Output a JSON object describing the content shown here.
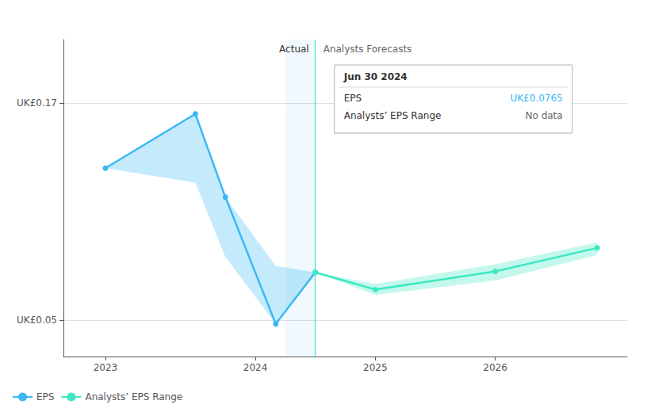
{
  "chart_data": {
    "type": "line",
    "xlim": [
      2022.4,
      2027.1
    ],
    "xticks": [
      {
        "value": 2022.75,
        "label": "2023"
      },
      2024,
      2025,
      2026
    ],
    "ylim": [
      0.03,
      0.205
    ],
    "yticks": [
      {
        "value": 0.05,
        "label": "UK£0.05"
      },
      {
        "value": 0.17,
        "label": "UK£0.17"
      }
    ],
    "grid": true,
    "legend": "lower left",
    "series": [
      {
        "name": "EPS",
        "color": "#3ab8f5",
        "marker": "circle",
        "x": [
          2022.75,
          2023.5,
          2023.75,
          2024.17,
          2024.5
        ],
        "values": [
          0.134,
          0.164,
          0.118,
          0.048,
          0.0765
        ],
        "band_upper": [
          0.134,
          0.164,
          0.118,
          0.08,
          0.0765
        ],
        "band_lower": [
          0.134,
          0.126,
          0.085,
          0.048,
          0.0765
        ]
      },
      {
        "name": "Analysts’ EPS Range",
        "color": "#3de8c0",
        "marker": "circle",
        "x": [
          2024.5,
          2025.0,
          2026.0,
          2026.85
        ],
        "values": [
          0.0765,
          0.067,
          0.077,
          0.09
        ],
        "band_upper": [
          0.0765,
          0.07,
          0.081,
          0.093
        ],
        "band_lower": [
          0.0765,
          0.064,
          0.072,
          0.086
        ]
      }
    ],
    "highlight_x": [
      2024.25,
      2024.5
    ],
    "divider_x": 2024.5,
    "section_labels": [
      "Actual",
      "Analysts Forecasts"
    ],
    "tooltip": {
      "title": "Jun 30 2024",
      "rows": [
        {
          "label": "EPS",
          "value": "UK£0.0765",
          "color": "#3ab8f5"
        },
        {
          "label": "Analysts’ EPS Range",
          "value": "No data"
        }
      ]
    }
  }
}
